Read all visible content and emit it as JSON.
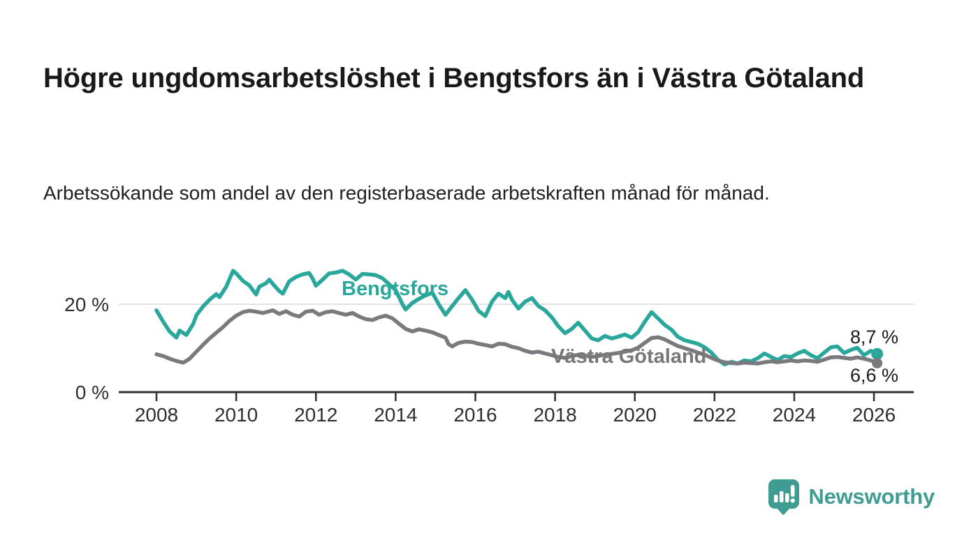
{
  "title": "Högre ungdomsarbetslöshet i Bengtsfors än i Västra Götaland",
  "subtitle": "Arbetssökande som andel av den registerbaserade arbetskraften månad för månad.",
  "branding": {
    "name": "Newsworthy",
    "icon": "newsworthy-bar-chart-bubble-icon",
    "color": "#3f9c93"
  },
  "chart_data": {
    "type": "line",
    "title": "Högre ungdomsarbetslöshet i Bengtsfors än i Västra Götaland",
    "subtitle": "Arbetssökande som andel av den registerbaserade arbetskraften månad för månad.",
    "xlabel": "",
    "ylabel": "",
    "grid": "horizontal, only at 20 %",
    "legend_position": "inline labels on lines",
    "x_range": [
      2007.7,
      2027.0
    ],
    "y_range": [
      0,
      30
    ],
    "y_ticks": [
      {
        "value": 0,
        "label": "0 %"
      },
      {
        "value": 20,
        "label": "20 %"
      }
    ],
    "x_ticks": [
      {
        "value": 2008,
        "label": "2008"
      },
      {
        "value": 2010,
        "label": "2010"
      },
      {
        "value": 2012,
        "label": "2012"
      },
      {
        "value": 2014,
        "label": "2014"
      },
      {
        "value": 2016,
        "label": "2016"
      },
      {
        "value": 2018,
        "label": "2018"
      },
      {
        "value": 2020,
        "label": "2020"
      },
      {
        "value": 2022,
        "label": "2022"
      },
      {
        "value": 2024,
        "label": "2024"
      },
      {
        "value": 2026,
        "label": "2026"
      }
    ],
    "series": [
      {
        "name": "Bengtsfors",
        "color": "#2aa79b",
        "end_label": "8,7 %",
        "end_value": 8.7,
        "points": [
          [
            2008.0,
            18.6
          ],
          [
            2008.17,
            16.0
          ],
          [
            2008.33,
            13.8
          ],
          [
            2008.5,
            12.4
          ],
          [
            2008.58,
            14.0
          ],
          [
            2008.75,
            13.0
          ],
          [
            2008.92,
            15.5
          ],
          [
            2009.0,
            17.5
          ],
          [
            2009.17,
            19.5
          ],
          [
            2009.33,
            21.0
          ],
          [
            2009.5,
            22.3
          ],
          [
            2009.58,
            21.6
          ],
          [
            2009.75,
            24.0
          ],
          [
            2009.92,
            27.6
          ],
          [
            2010.0,
            27.0
          ],
          [
            2010.17,
            25.3
          ],
          [
            2010.33,
            24.3
          ],
          [
            2010.5,
            22.2
          ],
          [
            2010.58,
            24.0
          ],
          [
            2010.75,
            24.8
          ],
          [
            2010.83,
            25.6
          ],
          [
            2010.92,
            24.6
          ],
          [
            2011.08,
            23.0
          ],
          [
            2011.17,
            22.4
          ],
          [
            2011.33,
            25.2
          ],
          [
            2011.5,
            26.2
          ],
          [
            2011.67,
            26.8
          ],
          [
            2011.83,
            27.1
          ],
          [
            2011.92,
            25.8
          ],
          [
            2012.0,
            24.2
          ],
          [
            2012.17,
            25.6
          ],
          [
            2012.33,
            27.0
          ],
          [
            2012.5,
            27.2
          ],
          [
            2012.67,
            27.6
          ],
          [
            2012.83,
            26.8
          ],
          [
            2013.0,
            25.6
          ],
          [
            2013.17,
            26.9
          ],
          [
            2013.33,
            26.8
          ],
          [
            2013.5,
            26.6
          ],
          [
            2013.67,
            25.9
          ],
          [
            2013.83,
            24.6
          ],
          [
            2014.0,
            23.2
          ],
          [
            2014.17,
            20.0
          ],
          [
            2014.25,
            18.8
          ],
          [
            2014.42,
            20.3
          ],
          [
            2014.58,
            21.2
          ],
          [
            2014.75,
            22.0
          ],
          [
            2014.92,
            22.6
          ],
          [
            2015.08,
            20.0
          ],
          [
            2015.25,
            17.6
          ],
          [
            2015.42,
            19.6
          ],
          [
            2015.58,
            21.4
          ],
          [
            2015.75,
            23.2
          ],
          [
            2015.92,
            21.0
          ],
          [
            2016.08,
            18.5
          ],
          [
            2016.25,
            17.3
          ],
          [
            2016.42,
            20.6
          ],
          [
            2016.58,
            22.4
          ],
          [
            2016.75,
            21.4
          ],
          [
            2016.83,
            22.8
          ],
          [
            2016.92,
            21.0
          ],
          [
            2017.08,
            19.0
          ],
          [
            2017.25,
            20.6
          ],
          [
            2017.42,
            21.4
          ],
          [
            2017.58,
            19.6
          ],
          [
            2017.75,
            18.6
          ],
          [
            2017.92,
            17.0
          ],
          [
            2018.08,
            15.0
          ],
          [
            2018.25,
            13.4
          ],
          [
            2018.42,
            14.4
          ],
          [
            2018.58,
            15.8
          ],
          [
            2018.75,
            14.0
          ],
          [
            2018.92,
            12.2
          ],
          [
            2019.08,
            11.8
          ],
          [
            2019.25,
            12.8
          ],
          [
            2019.42,
            12.2
          ],
          [
            2019.58,
            12.6
          ],
          [
            2019.75,
            13.1
          ],
          [
            2019.92,
            12.4
          ],
          [
            2020.08,
            13.6
          ],
          [
            2020.25,
            16.0
          ],
          [
            2020.42,
            18.2
          ],
          [
            2020.58,
            16.8
          ],
          [
            2020.75,
            15.3
          ],
          [
            2020.92,
            14.2
          ],
          [
            2021.08,
            12.6
          ],
          [
            2021.25,
            11.8
          ],
          [
            2021.42,
            11.4
          ],
          [
            2021.58,
            11.0
          ],
          [
            2021.75,
            10.2
          ],
          [
            2021.92,
            9.0
          ],
          [
            2022.08,
            7.4
          ],
          [
            2022.25,
            6.3
          ],
          [
            2022.42,
            6.9
          ],
          [
            2022.58,
            6.5
          ],
          [
            2022.75,
            7.2
          ],
          [
            2022.92,
            7.0
          ],
          [
            2023.08,
            7.7
          ],
          [
            2023.25,
            8.8
          ],
          [
            2023.42,
            8.0
          ],
          [
            2023.58,
            7.3
          ],
          [
            2023.75,
            8.2
          ],
          [
            2023.92,
            8.0
          ],
          [
            2024.08,
            8.8
          ],
          [
            2024.25,
            9.4
          ],
          [
            2024.42,
            8.4
          ],
          [
            2024.58,
            7.7
          ],
          [
            2024.75,
            9.0
          ],
          [
            2024.92,
            10.2
          ],
          [
            2025.08,
            10.4
          ],
          [
            2025.25,
            8.9
          ],
          [
            2025.42,
            9.6
          ],
          [
            2025.58,
            10.1
          ],
          [
            2025.75,
            8.4
          ],
          [
            2025.92,
            9.4
          ],
          [
            2026.08,
            8.7
          ]
        ]
      },
      {
        "name": "Västra Götaland",
        "color": "#7a7a7e",
        "end_label": "6,6 %",
        "end_value": 6.6,
        "points": [
          [
            2008.0,
            8.6
          ],
          [
            2008.17,
            8.2
          ],
          [
            2008.33,
            7.6
          ],
          [
            2008.5,
            7.1
          ],
          [
            2008.67,
            6.7
          ],
          [
            2008.83,
            7.6
          ],
          [
            2009.0,
            9.2
          ],
          [
            2009.17,
            10.8
          ],
          [
            2009.33,
            12.2
          ],
          [
            2009.5,
            13.5
          ],
          [
            2009.67,
            14.8
          ],
          [
            2009.83,
            16.2
          ],
          [
            2010.0,
            17.4
          ],
          [
            2010.17,
            18.2
          ],
          [
            2010.33,
            18.5
          ],
          [
            2010.5,
            18.3
          ],
          [
            2010.67,
            18.0
          ],
          [
            2010.83,
            18.4
          ],
          [
            2010.92,
            18.6
          ],
          [
            2011.08,
            17.8
          ],
          [
            2011.25,
            18.4
          ],
          [
            2011.42,
            17.6
          ],
          [
            2011.58,
            17.2
          ],
          [
            2011.75,
            18.3
          ],
          [
            2011.92,
            18.5
          ],
          [
            2012.08,
            17.6
          ],
          [
            2012.25,
            18.2
          ],
          [
            2012.42,
            18.4
          ],
          [
            2012.58,
            18.0
          ],
          [
            2012.75,
            17.6
          ],
          [
            2012.92,
            18.0
          ],
          [
            2013.08,
            17.2
          ],
          [
            2013.25,
            16.6
          ],
          [
            2013.42,
            16.4
          ],
          [
            2013.58,
            17.0
          ],
          [
            2013.75,
            17.4
          ],
          [
            2013.92,
            16.8
          ],
          [
            2014.08,
            15.6
          ],
          [
            2014.25,
            14.4
          ],
          [
            2014.42,
            13.8
          ],
          [
            2014.58,
            14.3
          ],
          [
            2014.75,
            14.0
          ],
          [
            2014.92,
            13.6
          ],
          [
            2015.08,
            13.0
          ],
          [
            2015.25,
            12.4
          ],
          [
            2015.33,
            10.9
          ],
          [
            2015.42,
            10.4
          ],
          [
            2015.58,
            11.2
          ],
          [
            2015.75,
            11.5
          ],
          [
            2015.92,
            11.4
          ],
          [
            2016.08,
            11.0
          ],
          [
            2016.25,
            10.7
          ],
          [
            2016.42,
            10.4
          ],
          [
            2016.58,
            11.0
          ],
          [
            2016.75,
            10.9
          ],
          [
            2016.92,
            10.3
          ],
          [
            2017.08,
            10.0
          ],
          [
            2017.25,
            9.4
          ],
          [
            2017.42,
            9.0
          ],
          [
            2017.58,
            9.2
          ],
          [
            2017.75,
            8.8
          ],
          [
            2017.92,
            8.4
          ],
          [
            2018.08,
            8.0
          ],
          [
            2018.25,
            7.8
          ],
          [
            2018.42,
            8.2
          ],
          [
            2018.58,
            8.5
          ],
          [
            2018.75,
            8.3
          ],
          [
            2018.92,
            8.0
          ],
          [
            2019.08,
            8.2
          ],
          [
            2019.25,
            8.5
          ],
          [
            2019.42,
            8.7
          ],
          [
            2019.58,
            8.9
          ],
          [
            2019.75,
            9.2
          ],
          [
            2019.92,
            9.5
          ],
          [
            2020.08,
            10.1
          ],
          [
            2020.25,
            11.2
          ],
          [
            2020.42,
            12.3
          ],
          [
            2020.58,
            12.5
          ],
          [
            2020.75,
            12.0
          ],
          [
            2020.92,
            11.2
          ],
          [
            2021.08,
            10.5
          ],
          [
            2021.25,
            10.0
          ],
          [
            2021.42,
            9.5
          ],
          [
            2021.58,
            9.0
          ],
          [
            2021.75,
            8.5
          ],
          [
            2021.92,
            7.8
          ],
          [
            2022.08,
            7.2
          ],
          [
            2022.25,
            6.8
          ],
          [
            2022.42,
            6.6
          ],
          [
            2022.58,
            6.5
          ],
          [
            2022.75,
            6.7
          ],
          [
            2022.92,
            6.6
          ],
          [
            2023.08,
            6.5
          ],
          [
            2023.25,
            6.8
          ],
          [
            2023.42,
            7.0
          ],
          [
            2023.58,
            6.8
          ],
          [
            2023.75,
            7.0
          ],
          [
            2023.92,
            7.2
          ],
          [
            2024.08,
            7.0
          ],
          [
            2024.25,
            7.2
          ],
          [
            2024.42,
            7.1
          ],
          [
            2024.58,
            6.9
          ],
          [
            2024.75,
            7.4
          ],
          [
            2024.92,
            7.9
          ],
          [
            2025.08,
            8.0
          ],
          [
            2025.25,
            7.8
          ],
          [
            2025.42,
            7.6
          ],
          [
            2025.58,
            7.9
          ],
          [
            2025.75,
            7.6
          ],
          [
            2025.92,
            7.2
          ],
          [
            2026.08,
            6.6
          ]
        ]
      }
    ]
  }
}
